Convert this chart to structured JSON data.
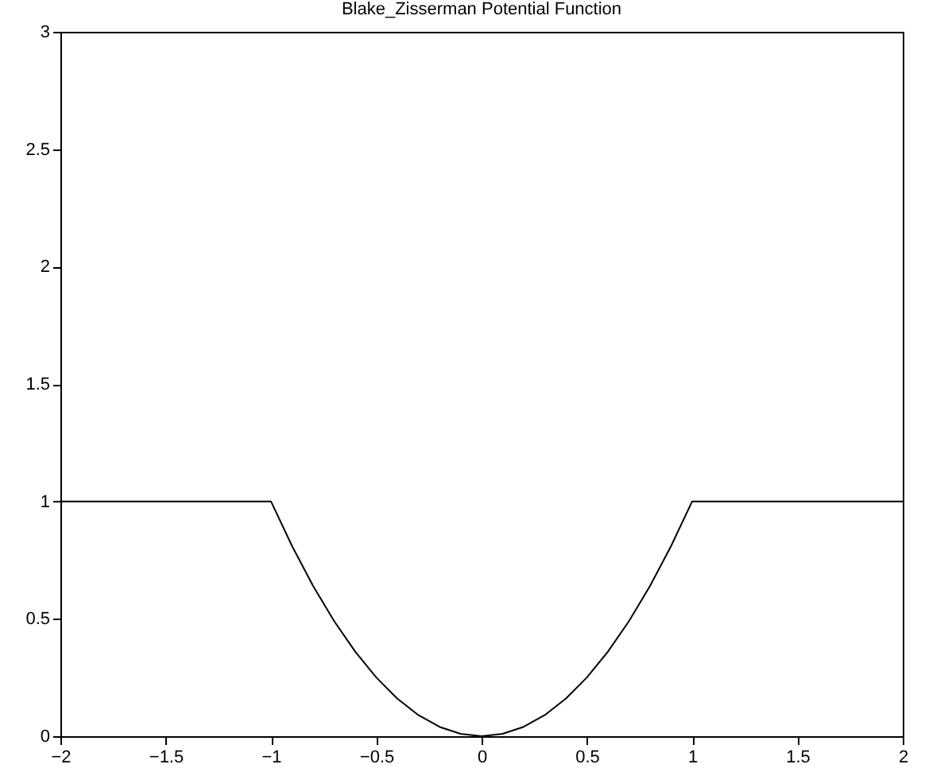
{
  "chart_data": {
    "type": "line",
    "title": "Blake_Zisserman Potential Function",
    "x": [
      -2,
      -1,
      -0.9,
      -0.8,
      -0.7,
      -0.6,
      -0.5,
      -0.4,
      -0.3,
      -0.2,
      -0.1,
      0,
      0.1,
      0.2,
      0.3,
      0.4,
      0.5,
      0.6,
      0.7,
      0.8,
      0.9,
      1,
      2
    ],
    "series": [
      {
        "color": "#000000",
        "values": [
          1,
          1,
          0.81,
          0.64,
          0.49,
          0.36,
          0.25,
          0.16,
          0.09,
          0.04,
          0.01,
          0,
          0.01,
          0.04,
          0.09,
          0.16,
          0.25,
          0.36,
          0.49,
          0.64,
          0.81,
          1,
          1
        ]
      }
    ],
    "xlim": [
      -2,
      2
    ],
    "xticks": [
      -2,
      -1.5,
      -1,
      -0.5,
      0,
      0.5,
      1,
      1.5,
      2
    ],
    "ylim": [
      0,
      3
    ],
    "yticks": [
      0,
      0.5,
      1,
      1.5,
      2,
      2.5,
      3
    ],
    "grid": false,
    "marker": "none",
    "line_style": "solid"
  }
}
